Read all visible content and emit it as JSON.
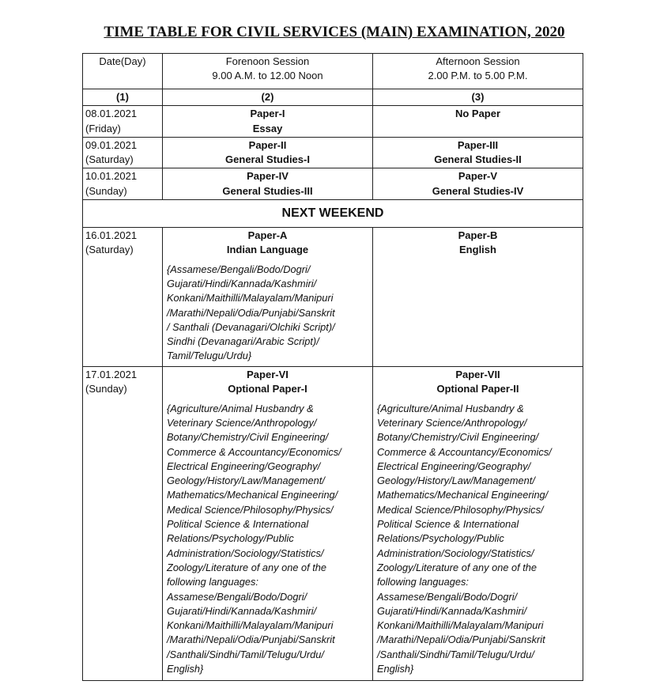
{
  "title": "TIME TABLE FOR CIVIL SERVICES (MAIN) EXAMINATION, 2020",
  "header": {
    "col1": "Date(Day)",
    "col2_l1": "Forenoon Session",
    "col2_l2": "9.00 A.M. to 12.00 Noon",
    "col3_l1": "Afternoon Session",
    "col3_l2": "2.00 P.M. to 5.00 P.M.",
    "n1": "(1)",
    "n2": "(2)",
    "n3": "(3)"
  },
  "rows": [
    {
      "date": "08.01.2021",
      "day": "(Friday)",
      "fn1": "Paper-I",
      "fn2": "Essay",
      "an1": "No Paper",
      "an2": ""
    },
    {
      "date": "09.01.2021",
      "day": "(Saturday)",
      "fn1": "Paper-II",
      "fn2": "General Studies-I",
      "an1": "Paper-III",
      "an2": "General Studies-II"
    },
    {
      "date": "10.01.2021",
      "day": "(Sunday)",
      "fn1": "Paper-IV",
      "fn2": "General Studies-III",
      "an1": "Paper-V",
      "an2": "General Studies-IV"
    }
  ],
  "next_weekend": "NEXT WEEKEND",
  "row4": {
    "date": "16.01.2021",
    "day": "(Saturday)",
    "fn1": "Paper-A",
    "fn2": "Indian Language",
    "fn_list": [
      "{Assamese/Bengali/Bodo/Dogri/",
      "Gujarati/Hindi/Kannada/Kashmiri/",
      "Konkani/Maithilli/Malayalam/Manipuri",
      "/Marathi/Nepali/Odia/Punjabi/Sanskrit",
      "/ Santhali (Devanagari/Olchiki Script)/",
      "Sindhi (Devanagari/Arabic Script)/",
      "Tamil/Telugu/Urdu}"
    ],
    "an1": "Paper-B",
    "an2": "English"
  },
  "row5": {
    "date": "17.01.2021",
    "day": "(Sunday)",
    "fn1": "Paper-VI",
    "fn2": "Optional Paper-I",
    "an1": "Paper-VII",
    "an2": "Optional Paper-II",
    "list": [
      "{Agriculture/Animal Husbandry &",
      "Veterinary Science/Anthropology/",
      "Botany/Chemistry/Civil Engineering/",
      "Commerce & Accountancy/Economics/",
      "Electrical Engineering/Geography/",
      "Geology/History/Law/Management/",
      "Mathematics/Mechanical Engineering/",
      "Medical Science/Philosophy/Physics/",
      "Political Science & International",
      "Relations/Psychology/Public",
      "Administration/Sociology/Statistics/",
      "Zoology/Literature of any one of the",
      "following languages:",
      "Assamese/Bengali/Bodo/Dogri/",
      "Gujarati/Hindi/Kannada/Kashmiri/",
      "Konkani/Maithilli/Malayalam/Manipuri",
      "/Marathi/Nepali/Odia/Punjabi/Sanskrit",
      "/Santhali/Sindhi/Tamil/Telugu/Urdu/",
      "English}"
    ]
  }
}
